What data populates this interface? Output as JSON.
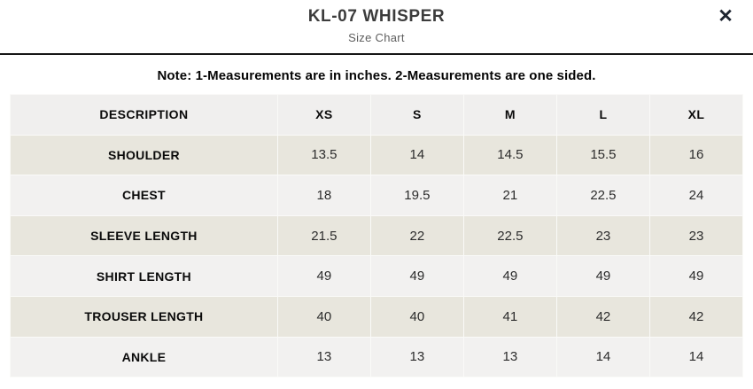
{
  "modal": {
    "title": "KL-07 WHISPER",
    "subtitle": "Size Chart",
    "close_label": "✕"
  },
  "note": "Note: 1-Measurements are in inches. 2-Measurements are one sided.",
  "table": {
    "columns": [
      "DESCRIPTION",
      "XS",
      "S",
      "M",
      "L",
      "XL"
    ],
    "rows": [
      {
        "label": "SHOULDER",
        "values": [
          "13.5",
          "14",
          "14.5",
          "15.5",
          "16"
        ]
      },
      {
        "label": "CHEST",
        "values": [
          "18",
          "19.5",
          "21",
          "22.5",
          "24"
        ]
      },
      {
        "label": "SLEEVE LENGTH",
        "values": [
          "21.5",
          "22",
          "22.5",
          "23",
          "23"
        ]
      },
      {
        "label": "SHIRT LENGTH",
        "values": [
          "49",
          "49",
          "49",
          "49",
          "49"
        ]
      },
      {
        "label": "TROUSER LENGTH",
        "values": [
          "40",
          "40",
          "41",
          "42",
          "42"
        ]
      },
      {
        "label": "ANKLE",
        "values": [
          "13",
          "13",
          "13",
          "14",
          "14"
        ]
      }
    ]
  },
  "colors": {
    "header_divider": "#161616",
    "table_header_bg": "#f0efee",
    "row_beige_bg": "#e8e6dd",
    "row_light_bg": "#f2f1f0",
    "cell_border": "#fafaf8",
    "title_text": "#3c3c3c",
    "subtitle_text": "#5e5e5e",
    "close_icon": "#1d2430"
  }
}
